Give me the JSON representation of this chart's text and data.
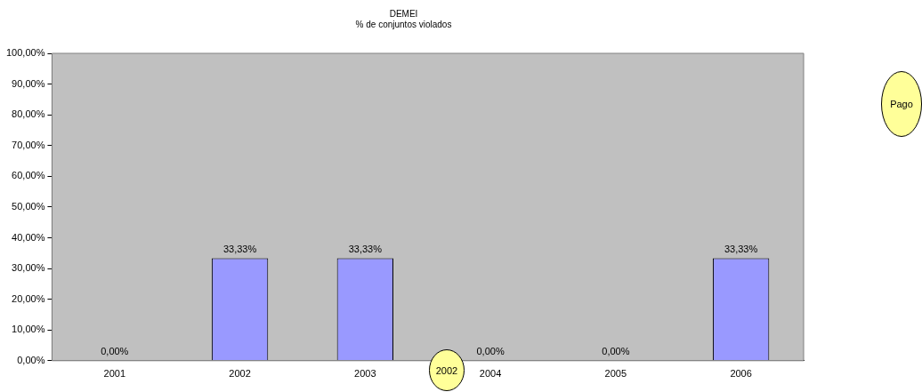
{
  "chart_data": {
    "type": "bar",
    "title": "DEMEI",
    "subtitle": "% de conjuntos violados",
    "categories": [
      "2001",
      "2002",
      "2003",
      "2004",
      "2005",
      "2006"
    ],
    "values": [
      0,
      33.33,
      33.33,
      0,
      0,
      33.33
    ],
    "value_labels": [
      "0,00%",
      "33,33%",
      "33,33%",
      "0,00%",
      "0,00%",
      "33,33%"
    ],
    "color": "#9999ff",
    "ylim": [
      0,
      100
    ],
    "yticks": [
      {
        "value": 0,
        "label": "0,00%"
      },
      {
        "value": 10,
        "label": "10,00%"
      },
      {
        "value": 20,
        "label": "20,00%"
      },
      {
        "value": 30,
        "label": "30,00%"
      },
      {
        "value": 40,
        "label": "40,00%"
      },
      {
        "value": 50,
        "label": "50,00%"
      },
      {
        "value": 60,
        "label": "60,00%"
      },
      {
        "value": 70,
        "label": "70,00%"
      },
      {
        "value": 80,
        "label": "80,00%"
      },
      {
        "value": 90,
        "label": "90,00%"
      },
      {
        "value": 100,
        "label": "100,00%"
      }
    ],
    "grid": false,
    "legend": false,
    "annotations": [
      "Pago",
      "2002"
    ]
  }
}
